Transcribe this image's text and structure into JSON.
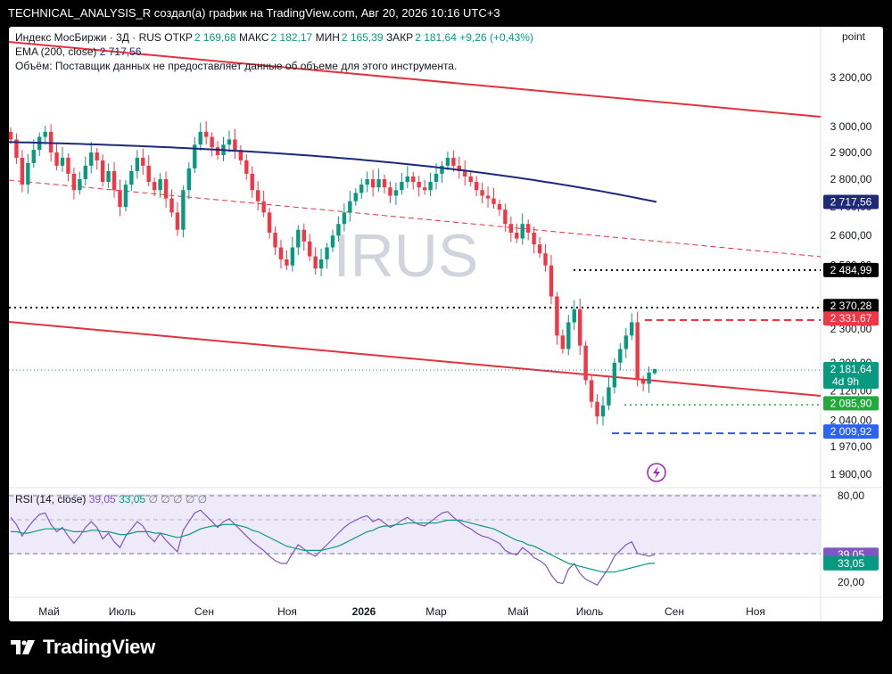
{
  "header": {
    "caption": "TECHNICAL_ANALYSIS_R создал(а) график на TradingView.com, Авг 20, 2026 10:16 UTC+3"
  },
  "legend": {
    "instrument": "Индекс МосБиржи · 3Д · RUS",
    "open_label": "ОТКР",
    "open": "2 169,68",
    "high_label": "МАКС",
    "high": "2 182,17",
    "low_label": "МИН",
    "low": "2 165,39",
    "close_label": "ЗАКР",
    "close": "2 181,64",
    "change": "+9,26 (+0,43%)",
    "ema_label": "EMA (200, close)",
    "ema_value": "2 717,56",
    "volume_note": "Объём: Поставщик данных не предоставляет данные об объеме для этого инструмента."
  },
  "scale_mode": "point",
  "watermark": "IRUS",
  "rsi_legend": {
    "label": "RSI (14, close)",
    "value1": "39,05",
    "value2": "33,05",
    "placeholders": "∅ ∅ ∅ ∅ ∅"
  },
  "price_axis": {
    "ticks": [
      {
        "label": "3 200,00",
        "value": 3200
      },
      {
        "label": "3 000,00",
        "value": 3000
      },
      {
        "label": "2 900,00",
        "value": 2900
      },
      {
        "label": "2 800,00",
        "value": 2800
      },
      {
        "label": "2 700,00",
        "value": 2700
      },
      {
        "label": "2 600,00",
        "value": 2600
      },
      {
        "label": "2 500,00",
        "value": 2500
      },
      {
        "label": "2 300,00",
        "value": 2300
      },
      {
        "label": "2 200,00",
        "value": 2200
      },
      {
        "label": "2 120,00",
        "value": 2120
      },
      {
        "label": "2 040,00",
        "value": 2040
      },
      {
        "label": "1 970,00",
        "value": 1970
      },
      {
        "label": "1 900,00",
        "value": 1900
      }
    ],
    "badges": [
      {
        "name": "level-2484-badge",
        "text": "2 484,99",
        "value": 2484.99,
        "bg": "#000000",
        "fg": "#ffffff"
      },
      {
        "name": "level-2370-badge",
        "text": "2 370,28",
        "value": 2370.28,
        "bg": "#000000",
        "fg": "#ffffff"
      },
      {
        "name": "level-2331-badge",
        "text": "2 331,67",
        "value": 2331.67,
        "bg": "#f23645",
        "fg": "#ffffff"
      },
      {
        "name": "ema-badge",
        "text": "2 717,56",
        "value": 2717.56,
        "bg": "#1e2a78",
        "fg": "#ffffff"
      },
      {
        "name": "level-2085-badge",
        "text": "2 085,90",
        "value": 2085.9,
        "bg": "#22ab3c",
        "fg": "#ffffff"
      },
      {
        "name": "level-2009-badge",
        "text": "2 009,92",
        "value": 2009.92,
        "bg": "#2962ff",
        "fg": "#ffffff"
      }
    ],
    "last_price": "2 181,64",
    "countdown": "4d 9h"
  },
  "rsi_axis": {
    "ticks": [
      {
        "label": "80,00",
        "value": 80
      },
      {
        "label": "20,00",
        "value": 20
      }
    ],
    "badges": [
      {
        "name": "rsi-value-badge",
        "text": "39,05",
        "value": 39.05,
        "bg": "#7e57c2"
      },
      {
        "name": "rsi-ma-badge",
        "text": "33,05",
        "value": 33.05,
        "bg": "#089981"
      }
    ]
  },
  "time_axis": [
    {
      "label": "Май",
      "bold": false
    },
    {
      "label": "Июль",
      "bold": false
    },
    {
      "label": "Сен",
      "bold": false
    },
    {
      "label": "Ноя",
      "bold": false
    },
    {
      "label": "2026",
      "bold": true
    },
    {
      "label": "Мар",
      "bold": false
    },
    {
      "label": "Май",
      "bold": false
    },
    {
      "label": "Июль",
      "bold": false
    },
    {
      "label": "Сен",
      "bold": false
    },
    {
      "label": "Ноя",
      "bold": false
    }
  ],
  "brand": "TradingView",
  "colors": {
    "up": "#089981",
    "down": "#f23645",
    "ema": "#1e2a78",
    "channel": "#e0323f",
    "rsi": "#7e57c2",
    "rsi_ma": "#089981",
    "rsi_band": "#efeaf9"
  },
  "chart_data": {
    "type": "candlestick",
    "timeframe": "3D",
    "symbol": "IRUS",
    "last": {
      "open": 2169.68,
      "high": 2182.17,
      "low": 2165.39,
      "close": 2181.64,
      "change": 9.26,
      "change_pct": 0.43
    },
    "ema200": 2717.56,
    "horizontal_levels": [
      {
        "value": 2484.99,
        "style": "dotted",
        "color": "black"
      },
      {
        "value": 2370.28,
        "style": "dotted",
        "color": "black"
      },
      {
        "value": 2331.67,
        "style": "dashed",
        "color": "red"
      },
      {
        "value": 2085.9,
        "style": "dotted",
        "color": "green"
      },
      {
        "value": 2009.92,
        "style": "dashed",
        "color": "blue"
      }
    ],
    "closes": [
      2950,
      2880,
      2780,
      2860,
      2910,
      2960,
      2980,
      2900,
      2850,
      2880,
      2820,
      2760,
      2800,
      2850,
      2900,
      2870,
      2790,
      2830,
      2760,
      2700,
      2780,
      2830,
      2880,
      2850,
      2790,
      2760,
      2800,
      2730,
      2680,
      2620,
      2760,
      2840,
      2930,
      2980,
      2960,
      2920,
      2890,
      2930,
      2950,
      2910,
      2870,
      2820,
      2760,
      2720,
      2680,
      2610,
      2560,
      2520,
      2500,
      2560,
      2620,
      2580,
      2530,
      2490,
      2520,
      2560,
      2600,
      2640,
      2680,
      2720,
      2750,
      2780,
      2800,
      2770,
      2800,
      2770,
      2740,
      2760,
      2790,
      2810,
      2790,
      2770,
      2760,
      2790,
      2820,
      2850,
      2880,
      2850,
      2830,
      2810,
      2790,
      2760,
      2740,
      2730,
      2710,
      2690,
      2640,
      2610,
      2590,
      2640,
      2610,
      2570,
      2540,
      2500,
      2400,
      2280,
      2240,
      2320,
      2360,
      2250,
      2150,
      2090,
      2050,
      2080,
      2130,
      2200,
      2240,
      2280,
      2320,
      2150,
      2140,
      2172,
      2182
    ],
    "rsi": [
      65,
      60,
      52,
      58,
      63,
      67,
      68,
      60,
      55,
      58,
      52,
      47,
      52,
      58,
      62,
      58,
      50,
      54,
      48,
      44,
      52,
      57,
      62,
      59,
      52,
      48,
      54,
      49,
      45,
      41,
      56,
      62,
      68,
      70,
      66,
      62,
      58,
      62,
      64,
      60,
      56,
      52,
      48,
      45,
      42,
      38,
      35,
      33,
      33,
      40,
      46,
      43,
      40,
      38,
      42,
      46,
      50,
      54,
      58,
      61,
      63,
      65,
      66,
      62,
      64,
      61,
      58,
      60,
      63,
      65,
      62,
      60,
      59,
      62,
      65,
      68,
      69,
      65,
      62,
      59,
      57,
      54,
      52,
      51,
      49,
      47,
      42,
      40,
      39,
      44,
      41,
      37,
      35,
      32,
      25,
      20,
      19,
      29,
      33,
      26,
      22,
      20,
      18,
      24,
      30,
      38,
      42,
      46,
      48,
      40,
      39,
      38,
      39.05
    ],
    "rsi_ma": [
      55,
      55,
      54,
      54,
      55,
      56,
      57,
      57,
      57,
      57,
      56,
      55,
      55,
      55,
      56,
      56,
      55,
      55,
      54,
      53,
      53,
      54,
      55,
      55,
      55,
      54,
      54,
      53,
      52,
      51,
      52,
      53,
      55,
      57,
      58,
      59,
      59,
      60,
      60,
      60,
      59,
      58,
      56,
      55,
      53,
      51,
      49,
      47,
      45,
      44,
      43,
      42,
      42,
      42,
      42,
      43,
      44,
      45,
      47,
      49,
      51,
      53,
      55,
      56,
      58,
      59,
      59,
      60,
      60,
      61,
      61,
      61,
      61,
      61,
      61,
      62,
      63,
      63,
      63,
      62,
      61,
      60,
      59,
      58,
      57,
      55,
      53,
      51,
      49,
      48,
      46,
      45,
      43,
      41,
      39,
      37,
      35,
      33,
      32,
      31,
      30,
      29,
      28,
      27,
      27,
      27,
      28,
      29,
      30,
      31,
      32,
      33,
      33.05
    ]
  }
}
